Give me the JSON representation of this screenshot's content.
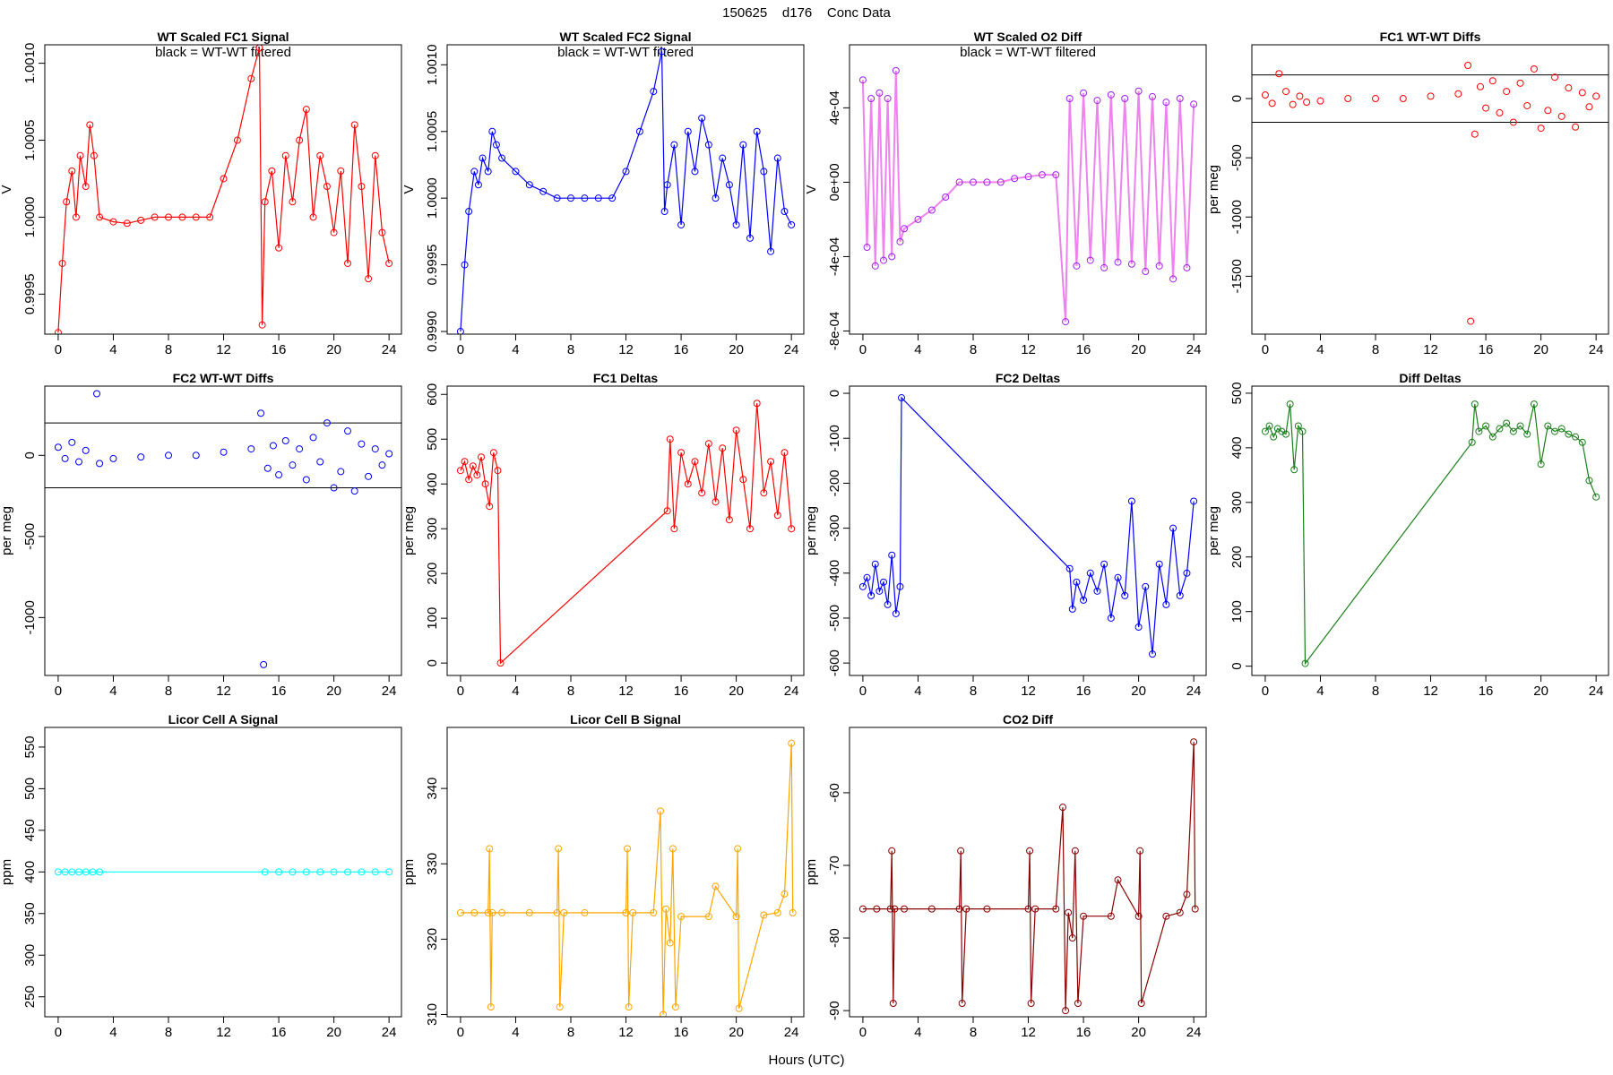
{
  "title": "150625    d176    Conc Data",
  "xlabel": "Hours (UTC)",
  "chart_data": [
    {
      "type": "line",
      "title": "WT Scaled FC1 Signal",
      "annotation": "black = WT-WT filtered",
      "ylabel": "V",
      "color": "#ff0000",
      "line_color": "#ff0000",
      "x": [
        0,
        0.3,
        0.6,
        1,
        1.3,
        1.6,
        2,
        2.3,
        2.6,
        3,
        4,
        5,
        6,
        7,
        8,
        9,
        10,
        11,
        12,
        13,
        14,
        14.6,
        14.8,
        15,
        15.5,
        16,
        16.5,
        17,
        17.5,
        18,
        18.5,
        19,
        19.5,
        20,
        20.5,
        21,
        21.5,
        22,
        22.5,
        23,
        23.5,
        24
      ],
      "values": [
        0.99925,
        0.9997,
        1.0001,
        1.0003,
        1.0,
        1.0004,
        1.0002,
        1.0006,
        1.0004,
        1.0,
        0.99997,
        0.99996,
        0.99998,
        1.0,
        1.0,
        1.0,
        1.0,
        1.0,
        1.00025,
        1.0005,
        1.0009,
        1.0011,
        0.9993,
        1.0001,
        1.0003,
        0.9998,
        1.0004,
        1.0001,
        1.0005,
        1.0007,
        1.0,
        1.0004,
        1.0002,
        0.9999,
        1.0003,
        0.9997,
        1.0006,
        1.0002,
        0.9996,
        1.0004,
        0.9999,
        0.9997
      ],
      "xlim": [
        -0.97,
        24.9
      ],
      "xticks": [
        0,
        4,
        8,
        12,
        16,
        20,
        24
      ],
      "ylim": [
        0.99924,
        1.00112
      ],
      "yticks": [
        0.9995,
        {
          "value": 1,
          "label": "1.0000"
        },
        1.0005,
        {
          "value": 1.001,
          "label": "1.0010"
        }
      ]
    },
    {
      "type": "line",
      "title": "WT Scaled FC2 Signal",
      "annotation": "black = WT-WT filtered",
      "ylabel": "V",
      "color": "#0000ff",
      "line_color": "#0000ff",
      "x": [
        0,
        0.3,
        0.6,
        1,
        1.3,
        1.6,
        2,
        2.3,
        2.6,
        3,
        4,
        5,
        6,
        7,
        8,
        9,
        10,
        11,
        12,
        13,
        14,
        14.6,
        14.8,
        15,
        15.5,
        16,
        16.5,
        17,
        17.5,
        18,
        18.5,
        19,
        19.5,
        20,
        20.5,
        21,
        21.5,
        22,
        22.5,
        23,
        23.5,
        24
      ],
      "values": [
        0.999,
        0.9995,
        0.9999,
        1.0002,
        1.0001,
        1.0003,
        1.0002,
        1.0005,
        1.0004,
        1.0003,
        1.0002,
        1.0001,
        1.00005,
        1.0,
        1.0,
        1.0,
        1.0,
        1.0,
        1.0002,
        1.0005,
        1.0008,
        1.0011,
        0.9999,
        1.0001,
        1.0004,
        0.9998,
        1.0005,
        1.0002,
        1.0006,
        1.0004,
        1.0,
        1.0003,
        1.0001,
        0.9998,
        1.0004,
        0.9997,
        1.0005,
        1.0002,
        0.9996,
        1.0003,
        0.9999,
        0.9998
      ],
      "xlim": [
        -0.97,
        24.9
      ],
      "xticks": [
        0,
        4,
        8,
        12,
        16,
        20,
        24
      ],
      "ylim": [
        0.99898,
        1.00115
      ],
      "yticks": [
        {
          "value": 0.999,
          "label": "0.9990"
        },
        0.9995,
        {
          "value": 1,
          "label": "1.0000"
        },
        1.0005,
        {
          "value": 1.001,
          "label": "1.0010"
        }
      ]
    },
    {
      "type": "line",
      "title": "WT Scaled O2 Diff",
      "annotation": "black = WT-WT filtered",
      "ylabel": "V",
      "color": "#a020f0",
      "line_color": "#ee82ee",
      "x": [
        0,
        0.3,
        0.6,
        0.9,
        1.2,
        1.5,
        1.8,
        2.1,
        2.4,
        2.7,
        3,
        4,
        5,
        6,
        7,
        8,
        9,
        10,
        11,
        12,
        13,
        14,
        14.7,
        15,
        15.5,
        16,
        16.5,
        17,
        17.5,
        18,
        18.5,
        19,
        19.5,
        20,
        20.5,
        21,
        21.5,
        22,
        22.5,
        23,
        23.5,
        24
      ],
      "values": [
        0.00055,
        -0.00035,
        0.00045,
        -0.00045,
        0.00048,
        -0.00042,
        0.00045,
        -0.0004,
        0.0006,
        -0.00032,
        -0.00025,
        -0.0002,
        -0.00015,
        -8e-05,
        0,
        0,
        0,
        0,
        2e-05,
        3e-05,
        4e-05,
        4e-05,
        -0.00075,
        0.00045,
        -0.00045,
        0.00048,
        -0.00042,
        0.00044,
        -0.00046,
        0.00047,
        -0.00043,
        0.00045,
        -0.00044,
        0.00049,
        -0.00048,
        0.00046,
        -0.00045,
        0.00043,
        -0.00052,
        0.00045,
        -0.00046,
        0.00042
      ],
      "xlim": [
        -0.97,
        24.9
      ],
      "xticks": [
        0,
        4,
        8,
        12,
        16,
        20,
        24
      ],
      "ylim": [
        -0.000817,
        0.000739
      ],
      "yticks": [
        {
          "value": -0.0008,
          "label": "-8e-04"
        },
        {
          "value": -0.0004,
          "label": "-4e-04"
        },
        {
          "value": 0,
          "label": "0e+00"
        },
        {
          "value": 0.0004,
          "label": "4e-04"
        }
      ]
    },
    {
      "type": "scatter",
      "title": "FC1 WT-WT Diffs",
      "ylabel": "per meg",
      "color": "#ff0000",
      "hlines": [
        200,
        -200
      ],
      "x": [
        0,
        0.5,
        1,
        1.5,
        2,
        2.5,
        3,
        4,
        6,
        8,
        10,
        12,
        14,
        14.7,
        14.9,
        15.2,
        15.6,
        16,
        16.5,
        17,
        17.5,
        18,
        18.5,
        19,
        19.5,
        20,
        20.5,
        21,
        21.5,
        22,
        22.5,
        23,
        23.5,
        24
      ],
      "values": [
        30,
        -40,
        210,
        60,
        -50,
        20,
        -30,
        -20,
        0,
        0,
        0,
        20,
        40,
        280,
        -1880,
        -300,
        100,
        -80,
        150,
        -120,
        60,
        -200,
        130,
        -60,
        250,
        -250,
        -100,
        180,
        -150,
        90,
        -240,
        50,
        -70,
        20
      ],
      "xlim": [
        -0.97,
        24.9
      ],
      "xticks": [
        0,
        4,
        8,
        12,
        16,
        20,
        24
      ],
      "ylim": [
        -1989,
        454
      ],
      "yticks": [
        -1500,
        -1000,
        -500,
        0
      ]
    },
    {
      "type": "scatter",
      "title": "FC2 WT-WT Diffs",
      "ylabel": "per meg",
      "color": "#0000ff",
      "hlines": [
        200,
        -200
      ],
      "x": [
        0,
        0.5,
        1,
        1.5,
        2,
        2.8,
        3,
        4,
        6,
        8,
        10,
        12,
        14,
        14.7,
        14.9,
        15.2,
        15.6,
        16,
        16.5,
        17,
        17.5,
        18,
        18.5,
        19,
        19.5,
        20,
        20.5,
        21,
        21.5,
        22,
        22.5,
        23,
        23.5,
        24
      ],
      "values": [
        50,
        -20,
        80,
        -40,
        30,
        380,
        -50,
        -20,
        -10,
        0,
        0,
        20,
        40,
        260,
        -1290,
        -80,
        60,
        -120,
        90,
        -60,
        40,
        -150,
        110,
        -40,
        200,
        -200,
        -100,
        150,
        -220,
        70,
        -130,
        40,
        -60,
        10
      ],
      "xlim": [
        -0.97,
        24.9
      ],
      "xticks": [
        0,
        4,
        8,
        12,
        16,
        20,
        24
      ],
      "ylim": [
        -1357,
        427
      ],
      "yticks": [
        -1000,
        -500,
        0
      ]
    },
    {
      "type": "line",
      "title": "FC1 Deltas",
      "ylabel": "per meg",
      "color": "#ff0000",
      "line_color": "#ff0000",
      "x": [
        0,
        0.3,
        0.6,
        0.9,
        1.2,
        1.5,
        1.8,
        2.1,
        2.4,
        2.7,
        2.9,
        15,
        15.2,
        15.5,
        16,
        16.5,
        17,
        17.5,
        18,
        18.5,
        19,
        19.5,
        20,
        20.5,
        21,
        21.5,
        22,
        22.5,
        23,
        23.5,
        24
      ],
      "values": [
        430,
        450,
        410,
        440,
        420,
        460,
        400,
        350,
        470,
        430,
        0,
        340,
        500,
        300,
        470,
        400,
        450,
        380,
        490,
        360,
        480,
        320,
        520,
        410,
        300,
        580,
        380,
        450,
        330,
        470,
        300
      ],
      "xlim": [
        -0.97,
        24.9
      ],
      "xticks": [
        0,
        4,
        8,
        12,
        16,
        20,
        24
      ],
      "ylim": [
        -27.7,
        618.5
      ],
      "yticks": [
        0,
        100,
        200,
        300,
        400,
        500,
        600
      ]
    },
    {
      "type": "line",
      "title": "FC2 Deltas",
      "ylabel": "per meg",
      "color": "#0000ff",
      "line_color": "#0000ff",
      "x": [
        0,
        0.3,
        0.6,
        0.9,
        1.2,
        1.5,
        1.8,
        2.1,
        2.4,
        2.7,
        2.8,
        15,
        15.2,
        15.5,
        16,
        16.5,
        17,
        17.5,
        18,
        18.5,
        19,
        19.5,
        20,
        20.5,
        21,
        21.5,
        22,
        22.5,
        23,
        23.5,
        24
      ],
      "values": [
        -430,
        -410,
        -450,
        -380,
        -440,
        -420,
        -470,
        -360,
        -490,
        -430,
        -10,
        -390,
        -480,
        -420,
        -460,
        -400,
        -440,
        -380,
        -500,
        -410,
        -450,
        -240,
        -520,
        -430,
        -580,
        -380,
        -470,
        -300,
        -450,
        -400,
        -240
      ],
      "xlim": [
        -0.97,
        24.9
      ],
      "xticks": [
        0,
        4,
        8,
        12,
        16,
        20,
        24
      ],
      "ylim": [
        -627.6,
        16
      ],
      "yticks": [
        -600,
        -500,
        -400,
        -300,
        -200,
        -100,
        0
      ]
    },
    {
      "type": "line",
      "title": "Diff Deltas",
      "ylabel": "per meg",
      "color": "#1a7f1a",
      "line_color": "#1a7f1a",
      "x": [
        0,
        0.3,
        0.6,
        0.9,
        1.2,
        1.5,
        1.8,
        2.1,
        2.4,
        2.7,
        2.9,
        15,
        15.2,
        15.5,
        16,
        16.5,
        17,
        17.5,
        18,
        18.5,
        19,
        19.5,
        20,
        20.5,
        21,
        21.5,
        22,
        22.5,
        23,
        23.5,
        24
      ],
      "values": [
        430,
        440,
        420,
        435,
        430,
        425,
        480,
        360,
        440,
        430,
        5,
        410,
        480,
        430,
        440,
        420,
        435,
        445,
        430,
        440,
        425,
        480,
        370,
        440,
        430,
        435,
        425,
        420,
        410,
        340,
        310
      ],
      "xlim": [
        -0.97,
        24.9
      ],
      "xticks": [
        0,
        4,
        8,
        12,
        16,
        20,
        24
      ],
      "ylim": [
        -17,
        513
      ],
      "yticks": [
        0,
        100,
        200,
        300,
        400,
        500
      ]
    },
    {
      "type": "line",
      "title": "Licor Cell A Signal",
      "ylabel": "ppm",
      "color": "#00ffff",
      "line_color": "#00ffff",
      "x": [
        0,
        0.5,
        1,
        1.5,
        2,
        2.5,
        3,
        15,
        16,
        17,
        18,
        19,
        20,
        21,
        22,
        23,
        24
      ],
      "values": [
        400,
        400,
        400,
        400,
        400,
        400,
        400,
        400,
        400,
        400,
        400,
        400,
        400,
        400,
        400,
        400,
        400
      ],
      "xlim": [
        -0.97,
        24.9
      ],
      "xticks": [
        0,
        4,
        8,
        12,
        16,
        20,
        24
      ],
      "ylim": [
        226,
        573.6
      ],
      "yticks": [
        250,
        300,
        350,
        400,
        450,
        500,
        550
      ]
    },
    {
      "type": "line",
      "title": "Licor Cell B Signal",
      "ylabel": "ppm",
      "color": "#ffa500",
      "line_color": "#ffa500",
      "x": [
        0,
        1,
        2,
        2.1,
        2.2,
        2.3,
        3,
        5,
        7,
        7.1,
        7.2,
        7.5,
        9,
        12,
        12.1,
        12.2,
        12.5,
        14,
        14.5,
        14.7,
        14.9,
        15.2,
        15.4,
        15.6,
        16,
        18,
        18.5,
        20,
        20.1,
        20.2,
        22,
        23,
        23.5,
        24,
        24.1
      ],
      "values": [
        323.5,
        323.5,
        323.5,
        332,
        311,
        323.5,
        323.5,
        323.5,
        323.5,
        332,
        311,
        323.5,
        323.5,
        323.5,
        332,
        311,
        323.5,
        323.5,
        337,
        310,
        324,
        319.5,
        332,
        311,
        323,
        323,
        327,
        323,
        332,
        310.8,
        323.2,
        323.5,
        326,
        346,
        323.5
      ],
      "xlim": [
        -0.97,
        24.9
      ],
      "xticks": [
        0,
        4,
        8,
        12,
        16,
        20,
        24
      ],
      "ylim": [
        309.7,
        348.1
      ],
      "yticks": [
        310,
        320,
        330,
        340
      ]
    },
    {
      "type": "line",
      "title": "CO2 Diff",
      "ylabel": "ppm",
      "color": "#8b0000",
      "line_color": "#8b0000",
      "x": [
        0,
        1,
        2,
        2.1,
        2.2,
        2.3,
        3,
        5,
        7,
        7.1,
        7.2,
        7.5,
        9,
        12,
        12.1,
        12.2,
        12.5,
        14,
        14.5,
        14.7,
        14.9,
        15.2,
        15.4,
        15.6,
        16,
        18,
        18.5,
        20,
        20.1,
        20.2,
        22,
        23,
        23.5,
        24,
        24.1
      ],
      "values": [
        -76,
        -76,
        -76,
        -68,
        -89,
        -76,
        -76,
        -76,
        -76,
        -68,
        -89,
        -76,
        -76,
        -76,
        -68,
        -89,
        -76,
        -76,
        -62,
        -90,
        -76.5,
        -80,
        -68,
        -89,
        -77,
        -77,
        -72,
        -77,
        -68,
        -89,
        -77,
        -76.5,
        -74,
        -53,
        -76
      ],
      "xlim": [
        -0.97,
        24.9
      ],
      "xticks": [
        0,
        4,
        8,
        12,
        16,
        20,
        24
      ],
      "ylim": [
        -90.85,
        -51
      ],
      "yticks": [
        -90,
        -80,
        -70,
        -60
      ]
    }
  ]
}
